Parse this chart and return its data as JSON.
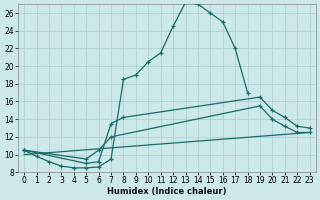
{
  "bg_color": "#cce8e8",
  "grid_color": "#aacccc",
  "line_color": "#1a6b6b",
  "xlabel": "Humidex (Indice chaleur)",
  "xlim": [
    -0.5,
    23.5
  ],
  "ylim": [
    8,
    27
  ],
  "xticks": [
    0,
    1,
    2,
    3,
    4,
    5,
    6,
    7,
    8,
    9,
    10,
    11,
    12,
    13,
    14,
    15,
    16,
    17,
    18,
    19,
    20,
    21,
    22,
    23
  ],
  "yticks": [
    8,
    10,
    12,
    14,
    16,
    18,
    20,
    22,
    24,
    26
  ],
  "curve1_x": [
    0,
    1,
    2,
    3,
    4,
    5,
    6,
    7,
    8,
    9,
    10,
    11,
    12,
    13,
    14,
    15,
    16,
    17,
    18
  ],
  "curve1_y": [
    10.5,
    9.8,
    9.2,
    8.7,
    8.5,
    8.5,
    8.6,
    9.5,
    18.5,
    19.0,
    20.5,
    21.5,
    24.5,
    27.2,
    27.0,
    26.0,
    25.0,
    22.0,
    17.0
  ],
  "curve2_x": [
    0,
    5,
    6,
    7,
    8,
    19,
    20,
    21,
    22,
    23
  ],
  "curve2_y": [
    10.5,
    9.0,
    9.2,
    13.5,
    14.2,
    16.5,
    15.0,
    14.2,
    13.2,
    13.0
  ],
  "curve3_x": [
    0,
    5,
    6,
    7,
    19,
    20,
    21,
    22,
    23
  ],
  "curve3_y": [
    10.5,
    9.5,
    10.5,
    12.0,
    15.5,
    14.0,
    13.2,
    12.5,
    12.5
  ],
  "curve4_x": [
    0,
    23
  ],
  "curve4_y": [
    10.0,
    12.5
  ]
}
